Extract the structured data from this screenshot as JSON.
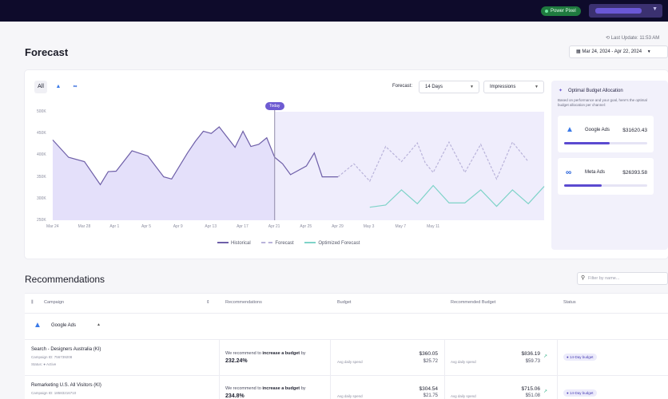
{
  "topbar": {
    "pill_label": "Power Pixel"
  },
  "header": {
    "last_update": "Last Update: 11:53 AM",
    "title": "Forecast",
    "date_range": "Mar 24, 2024 - Apr 22, 2024"
  },
  "filters": {
    "all_label": "All",
    "forecast_label": "Forecast:",
    "period": "14 Days",
    "metric": "Impressions"
  },
  "chart_data": {
    "type": "line",
    "y_tick_labels": [
      "500K",
      "450K",
      "400K",
      "350K",
      "300K",
      "250K"
    ],
    "ylim": [
      250000,
      500000
    ],
    "x_tick_labels": [
      "Mar 24",
      "Mar 28",
      "Apr 1",
      "Apr 5",
      "Apr 9",
      "Apr 13",
      "Apr 17",
      "Apr 21",
      "Apr 25",
      "Apr 29",
      "May 3",
      "May 7",
      "May 11"
    ],
    "today_label": "Today",
    "today_x": 28,
    "series": [
      {
        "name": "Historical",
        "color": "#6e5fa8",
        "x": [
          0,
          2,
          4,
          6,
          7,
          8,
          10,
          12,
          14,
          15,
          17,
          18,
          19,
          20,
          21,
          23,
          24,
          25,
          26,
          27,
          28,
          29,
          30,
          32,
          33,
          34,
          35,
          36
        ],
        "values": [
          435000,
          395000,
          385000,
          332000,
          362000,
          363000,
          410000,
          398000,
          350000,
          345000,
          405000,
          432000,
          455000,
          450000,
          465000,
          418000,
          455000,
          420000,
          425000,
          440000,
          395000,
          380000,
          355000,
          375000,
          405000,
          350000,
          350000,
          350000
        ]
      },
      {
        "name": "Forecast",
        "color": "#b9b3da",
        "x": [
          36,
          38,
          40,
          42,
          44,
          46,
          47,
          48,
          50,
          52,
          54,
          56,
          58,
          60
        ],
        "values": [
          350000,
          380000,
          340000,
          420000,
          385000,
          428000,
          382000,
          360000,
          430000,
          360000,
          425000,
          345000,
          430000,
          385000
        ]
      },
      {
        "name": "Optimized Forecast",
        "color": "#7ed3c8",
        "x": [
          40,
          42,
          44,
          46,
          48,
          50,
          52,
          54,
          56,
          58,
          60,
          62
        ],
        "values": [
          280000,
          285000,
          320000,
          288000,
          330000,
          290000,
          290000,
          320000,
          282000,
          320000,
          288000,
          328000
        ]
      }
    ]
  },
  "budget_panel": {
    "title": "Optimal Budget Allocation",
    "description": "Based on performance and your goal, here's the optimal budget allocation per channel:",
    "channels": [
      {
        "name": "Google Ads",
        "amount": "$31620.43",
        "share": 0.55
      },
      {
        "name": "Meta Ads",
        "amount": "$26393.58",
        "share": 0.45
      }
    ]
  },
  "recommendations": {
    "title": "Recommendations",
    "filter_placeholder": "Filter by name...",
    "columns": [
      "Campaign",
      "Recommendations",
      "Budget",
      "Recommended Budget",
      "Status"
    ],
    "group": "Google Ads",
    "rows": [
      {
        "name": "Search - Designers Australia (KI)",
        "campaign_id": "Campaign ID: 756739208",
        "status_line": "Status: ● Active",
        "rec_prefix": "We recommend to",
        "rec_action": "increase a budget",
        "rec_suffix": "by",
        "rec_pct": "232.24%",
        "budget_label": "Avg daily spend",
        "budget_total": "$360.05",
        "budget_daily": "$25.72",
        "rec_budget_label": "Avg daily spend",
        "rec_budget_total": "$836.19",
        "rec_budget_daily": "$59.73",
        "status": "● 14-Day budget"
      },
      {
        "name": "Remarketing U.S. All Visitors (KI)",
        "campaign_id": "Campaign ID: 18583216710",
        "rec_prefix": "We recommend to",
        "rec_action": "increase a budget",
        "rec_suffix": "by",
        "rec_pct": "234.8%",
        "budget_label": "Avg daily spend",
        "budget_total": "$304.54",
        "budget_daily": "$21.75",
        "rec_budget_label": "Avg daily spend",
        "rec_budget_total": "$715.06",
        "rec_budget_daily": "$51.08",
        "status": "● 14-Day budget"
      }
    ]
  },
  "colors": {
    "accent": "#5b4ad0",
    "topbar": "#0e0b2b",
    "historical_fill": "#e4e0fa",
    "forecast_fill": "#efedfc",
    "optimized": "#7ed3c8"
  }
}
